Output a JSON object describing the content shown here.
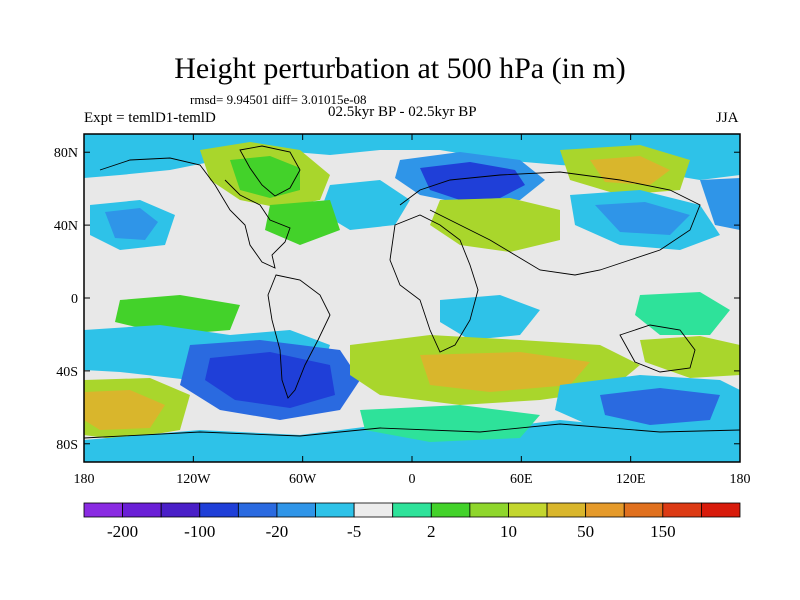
{
  "title": "Height perturbation at 500 hPa (in m)",
  "stats": "rmsd= 9.94501 diff= 3.01015e-08",
  "experiment": "Expt = temlD1-temlD",
  "period": "02.5kyr BP - 02.5kyr BP",
  "season": "JJA",
  "lat_ticks": [
    "80N",
    "40N",
    "0",
    "40S",
    "80S"
  ],
  "lon_ticks": [
    "180",
    "120W",
    "60W",
    "0",
    "60E",
    "120E",
    "180"
  ],
  "colorbar": {
    "colors": [
      "#8a2be2",
      "#6a1fd6",
      "#4a1fc8",
      "#1f3fd8",
      "#2a6ae0",
      "#2f95e8",
      "#2ec2e8",
      "#ececec",
      "#2ee29a",
      "#43d22a",
      "#8fd62c",
      "#c3d62e",
      "#d9b62c",
      "#e59a2a",
      "#e0701e",
      "#dc3a14",
      "#d81b0b"
    ],
    "labels": [
      "-200",
      "-100",
      "-20",
      "-5",
      "2",
      "10",
      "50",
      "150"
    ]
  },
  "palette": {
    "neutral": "#e8e8e8",
    "deep_blue": "#1f3fd8",
    "blue": "#2a6ae0",
    "light_blue": "#2ec2e8",
    "mid_blue": "#2f95e8",
    "teal": "#2ee29a",
    "green": "#43d22a",
    "yellow_green": "#a9d62c",
    "orange": "#d9b62c"
  }
}
